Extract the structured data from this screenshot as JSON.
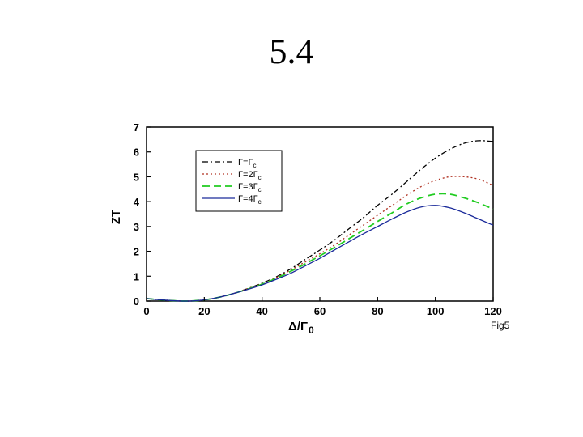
{
  "slide": {
    "title": "5.4"
  },
  "chart_data": {
    "type": "line",
    "xlabel": "Δ/Γ",
    "xlabel_sub": "0",
    "ylabel": "ZT",
    "note": "Fig5",
    "xlim": [
      0,
      120
    ],
    "ylim": [
      0,
      7
    ],
    "xticks": [
      0,
      20,
      40,
      60,
      80,
      100,
      120
    ],
    "yticks": [
      0,
      1,
      2,
      3,
      4,
      5,
      6,
      7
    ],
    "legend_position": "top-left",
    "x": [
      0,
      5,
      10,
      15,
      20,
      25,
      30,
      35,
      40,
      45,
      50,
      55,
      60,
      65,
      70,
      75,
      80,
      85,
      90,
      95,
      100,
      105,
      110,
      115,
      120
    ],
    "series": [
      {
        "name": "Γ=Γc",
        "label_main": "Γ=Γ",
        "label_sub": "c",
        "color": "#000000",
        "dash": "7,3,2,3",
        "values": [
          0.1,
          0.05,
          0.01,
          0.0,
          0.05,
          0.15,
          0.3,
          0.5,
          0.72,
          0.98,
          1.3,
          1.68,
          2.05,
          2.45,
          2.9,
          3.35,
          3.85,
          4.3,
          4.8,
          5.3,
          5.75,
          6.1,
          6.35,
          6.45,
          6.42
        ]
      },
      {
        "name": "Γ=2Γc",
        "label_main": "Γ=2Γ",
        "label_sub": "c",
        "color": "#b03020",
        "dash": "2,3",
        "values": [
          0.1,
          0.05,
          0.01,
          0.0,
          0.05,
          0.15,
          0.3,
          0.5,
          0.7,
          0.95,
          1.25,
          1.58,
          1.9,
          2.25,
          2.65,
          3.05,
          3.45,
          3.85,
          4.25,
          4.6,
          4.85,
          5.0,
          5.0,
          4.9,
          4.65
        ]
      },
      {
        "name": "Γ=3Γc",
        "label_main": "Γ=3Γ",
        "label_sub": "c",
        "color": "#22cc22",
        "dash": "9,5",
        "values": [
          0.1,
          0.05,
          0.01,
          0.0,
          0.05,
          0.15,
          0.3,
          0.48,
          0.68,
          0.92,
          1.2,
          1.5,
          1.82,
          2.15,
          2.5,
          2.85,
          3.2,
          3.55,
          3.9,
          4.15,
          4.3,
          4.3,
          4.15,
          3.95,
          3.7
        ]
      },
      {
        "name": "Γ=4Γc",
        "label_main": "Γ=4Γ",
        "label_sub": "c",
        "color": "#1a2a9a",
        "dash": "",
        "values": [
          0.1,
          0.05,
          0.01,
          0.0,
          0.05,
          0.15,
          0.3,
          0.47,
          0.65,
          0.88,
          1.12,
          1.42,
          1.72,
          2.05,
          2.38,
          2.7,
          3.0,
          3.3,
          3.58,
          3.78,
          3.85,
          3.75,
          3.55,
          3.3,
          3.05
        ]
      }
    ]
  }
}
